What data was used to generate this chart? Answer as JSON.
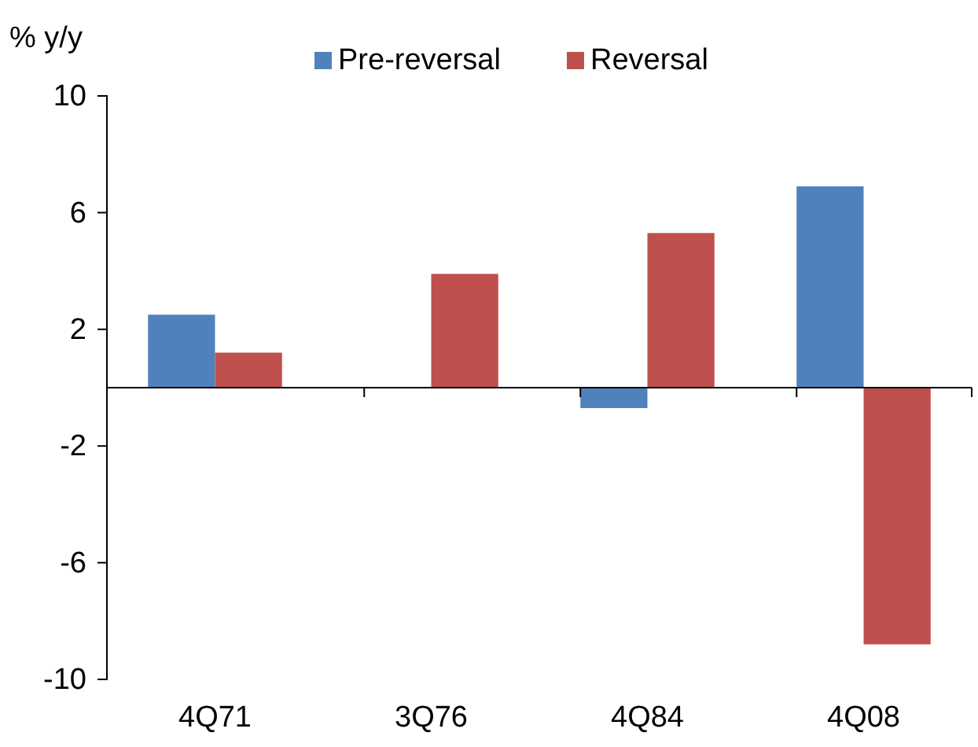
{
  "chart_data": {
    "type": "bar",
    "ylabel": "% y/y",
    "categories": [
      "4Q71",
      "3Q76",
      "4Q84",
      "4Q08"
    ],
    "series": [
      {
        "name": "Pre-reversal",
        "color": "#4f81bd",
        "values": [
          2.5,
          0,
          -0.7,
          6.9
        ]
      },
      {
        "name": "Reversal",
        "color": "#c0504d",
        "values": [
          1.2,
          3.9,
          5.3,
          -8.8
        ]
      }
    ],
    "ylim": [
      -10,
      10
    ],
    "yticks": [
      -10,
      -6,
      -2,
      2,
      6,
      10
    ],
    "legend": "top",
    "grid": false
  }
}
